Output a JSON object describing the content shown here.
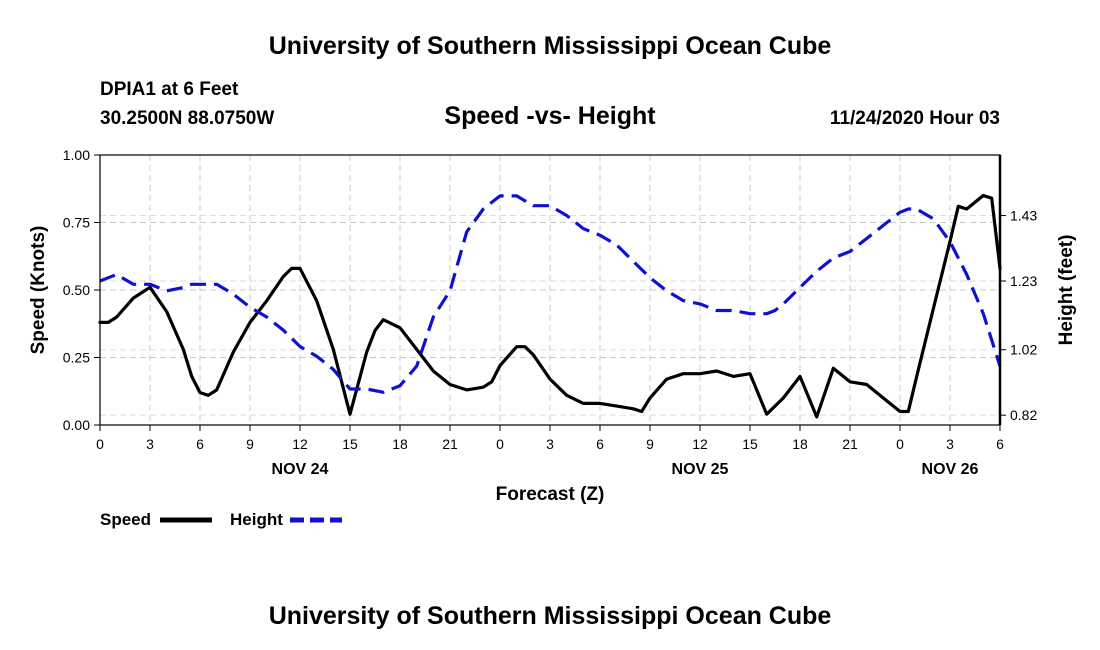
{
  "header": {
    "title_top": "University of Southern Mississippi Ocean Cube",
    "station": "DPIA1 at 6 Feet",
    "coords": "30.2500N 88.0750W",
    "chart_title": "Speed -vs- Height",
    "timestamp": "11/24/2020 Hour 03",
    "title_bottom": "University of Southern Mississippi Ocean Cube"
  },
  "legend": {
    "items": [
      {
        "label": "Speed",
        "color": "#000000",
        "style": "solid"
      },
      {
        "label": "Height",
        "color": "#1010d0",
        "style": "dashed"
      }
    ]
  },
  "chart_data": {
    "type": "line",
    "title": "Speed -vs- Height",
    "xlabel": "Forecast (Z)",
    "ylabel_left": "Speed (Knots)",
    "ylabel_right": "Height (feet)",
    "xlim": [
      0,
      54
    ],
    "ylim_left": [
      0,
      1.0
    ],
    "ylim_right": [
      0.79,
      1.615
    ],
    "x_ticks": [
      0,
      3,
      6,
      9,
      12,
      15,
      18,
      21,
      24,
      27,
      30,
      33,
      36,
      39,
      42,
      45,
      48,
      51,
      54
    ],
    "x_tick_labels": [
      "0",
      "3",
      "6",
      "9",
      "12",
      "15",
      "18",
      "21",
      "0",
      "3",
      "6",
      "9",
      "12",
      "15",
      "18",
      "21",
      "0",
      "3",
      "6"
    ],
    "day_labels": [
      {
        "x": 12,
        "label": "NOV 24"
      },
      {
        "x": 36,
        "label": "NOV 25"
      },
      {
        "x": 51,
        "label": "NOV 26"
      }
    ],
    "y_left_ticks": [
      0.0,
      0.25,
      0.5,
      0.75,
      1.0
    ],
    "y_left_tick_labels": [
      "0.00",
      "0.25",
      "0.50",
      "0.75",
      "1.00"
    ],
    "y_right_ticks": [
      0.82,
      1.02,
      1.23,
      1.43
    ],
    "y_right_tick_labels": [
      "0.82",
      "1.02",
      "1.23",
      "1.43"
    ],
    "grid": true,
    "series": [
      {
        "name": "Speed",
        "axis": "left",
        "color": "#000000",
        "dashed": false,
        "x": [
          0,
          0.5,
          1,
          2,
          3,
          4,
          5,
          5.5,
          6,
          6.5,
          7,
          8,
          9,
          10,
          11,
          11.5,
          12,
          13,
          14,
          15,
          16,
          16.5,
          17,
          18,
          19,
          20,
          21,
          22,
          23,
          23.5,
          24,
          25,
          25.5,
          26,
          27,
          28,
          29,
          30,
          31,
          32,
          32.5,
          33,
          34,
          35,
          36,
          37,
          38,
          39,
          40,
          40.5,
          41,
          42,
          43,
          44,
          45,
          46,
          47,
          48,
          48.5,
          49,
          50,
          51,
          51.5,
          52,
          53,
          53.5,
          54
        ],
        "y": [
          0.38,
          0.38,
          0.4,
          0.47,
          0.51,
          0.42,
          0.28,
          0.18,
          0.12,
          0.11,
          0.13,
          0.27,
          0.38,
          0.46,
          0.55,
          0.58,
          0.58,
          0.46,
          0.28,
          0.04,
          0.27,
          0.35,
          0.39,
          0.36,
          0.28,
          0.2,
          0.15,
          0.13,
          0.14,
          0.16,
          0.22,
          0.29,
          0.29,
          0.26,
          0.17,
          0.11,
          0.08,
          0.08,
          0.07,
          0.06,
          0.05,
          0.1,
          0.17,
          0.19,
          0.19,
          0.2,
          0.18,
          0.19,
          0.04,
          0.07,
          0.1,
          0.18,
          0.03,
          0.21,
          0.16,
          0.15,
          0.1,
          0.05,
          0.05,
          0.18,
          0.43,
          0.68,
          0.81,
          0.8,
          0.85,
          0.84,
          0.58
        ]
      },
      {
        "name": "Height",
        "axis": "right",
        "color": "#1010d0",
        "dashed": true,
        "x": [
          0,
          0.5,
          1,
          2,
          3,
          4,
          5,
          5.5,
          6,
          6.5,
          7,
          8,
          9,
          10,
          11,
          12,
          13,
          14,
          15,
          16,
          17,
          18,
          19,
          20,
          21,
          22,
          23,
          24,
          25,
          26,
          27,
          28,
          29,
          30,
          31,
          32,
          33,
          34,
          35,
          36,
          37,
          38,
          39,
          40,
          40.5,
          41,
          42,
          43,
          44,
          45,
          46,
          47,
          48,
          48.5,
          49,
          50,
          51,
          52,
          53,
          54
        ],
        "y": [
          1.23,
          1.24,
          1.25,
          1.22,
          1.22,
          1.2,
          1.21,
          1.22,
          1.22,
          1.22,
          1.22,
          1.19,
          1.15,
          1.12,
          1.08,
          1.03,
          1.0,
          0.96,
          0.9,
          0.9,
          0.89,
          0.91,
          0.97,
          1.12,
          1.2,
          1.38,
          1.45,
          1.49,
          1.49,
          1.46,
          1.46,
          1.43,
          1.39,
          1.37,
          1.34,
          1.29,
          1.24,
          1.2,
          1.17,
          1.16,
          1.14,
          1.14,
          1.13,
          1.13,
          1.14,
          1.16,
          1.21,
          1.26,
          1.3,
          1.32,
          1.36,
          1.4,
          1.44,
          1.45,
          1.45,
          1.42,
          1.35,
          1.25,
          1.13,
          0.97
        ]
      }
    ]
  }
}
